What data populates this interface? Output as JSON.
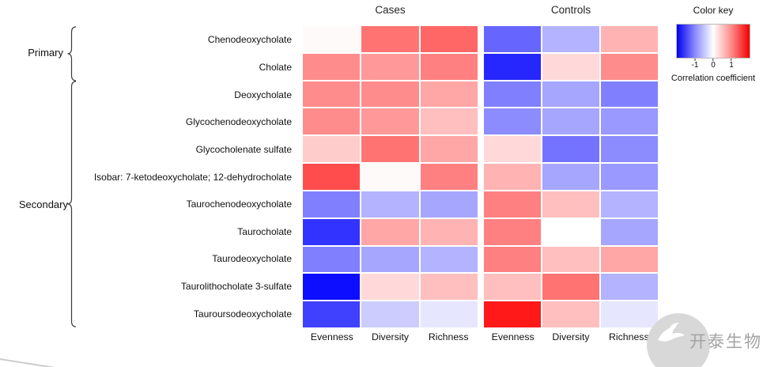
{
  "chart_data": {
    "type": "heatmap",
    "rows": [
      "Chenodeoxycholate",
      "Cholate",
      "Deoxycholate",
      "Glycochenodeoxycholate",
      "Glycocholenate sulfate",
      "Isobar: 7-ketodeoxycholate; 12-dehydrocholate",
      "Taurochenodeoxycholate",
      "Taurocholate",
      "Taurodeoxycholate",
      "Taurolithocholate 3-sulfate",
      "Tauroursodeoxycholate"
    ],
    "row_groups": [
      {
        "label": "Primary",
        "rows": [
          "Chenodeoxycholate",
          "Cholate"
        ]
      },
      {
        "label": "Secondary",
        "rows": [
          "Deoxycholate",
          "Glycochenodeoxycholate",
          "Glycocholenate sulfate",
          "Isobar: 7-ketodeoxycholate; 12-dehydrocholate",
          "Taurochenodeoxycholate",
          "Taurocholate",
          "Taurodeoxycholate",
          "Taurolithocholate 3-sulfate",
          "Tauroursodeoxycholate"
        ]
      }
    ],
    "columns": [
      "Evenness",
      "Diversity",
      "Richness"
    ],
    "value_range": [
      -1,
      1
    ],
    "colormap": {
      "negative": "#0000ff",
      "zero": "#ffffff",
      "positive": "#ff0000"
    },
    "panels": [
      {
        "title": "Cases",
        "values": [
          [
            0.02,
            0.55,
            0.6
          ],
          [
            0.45,
            0.4,
            0.5
          ],
          [
            0.45,
            0.45,
            0.35
          ],
          [
            0.45,
            0.4,
            0.25
          ],
          [
            0.2,
            0.55,
            0.35
          ],
          [
            0.7,
            0.02,
            0.5
          ],
          [
            -0.5,
            -0.3,
            -0.35
          ],
          [
            -0.8,
            0.35,
            0.3
          ],
          [
            -0.5,
            -0.35,
            -0.3
          ],
          [
            -0.95,
            0.15,
            0.25
          ],
          [
            -0.75,
            -0.2,
            -0.1
          ]
        ]
      },
      {
        "title": "Controls",
        "values": [
          [
            -0.6,
            -0.3,
            0.3
          ],
          [
            -0.85,
            0.15,
            0.45
          ],
          [
            -0.5,
            -0.35,
            -0.5
          ],
          [
            -0.45,
            -0.35,
            -0.4
          ],
          [
            0.15,
            -0.55,
            -0.45
          ],
          [
            0.3,
            -0.35,
            -0.4
          ],
          [
            0.5,
            0.25,
            -0.3
          ],
          [
            0.5,
            0.0,
            -0.35
          ],
          [
            0.5,
            0.25,
            0.35
          ],
          [
            0.25,
            0.55,
            -0.3
          ],
          [
            0.9,
            0.25,
            -0.1
          ]
        ]
      }
    ]
  },
  "color_key": {
    "title": "Color key",
    "ticks": [
      {
        "label": "-1",
        "pos": 25
      },
      {
        "label": "0",
        "pos": 50
      },
      {
        "label": "1",
        "pos": 75
      }
    ],
    "caption": "Correlation coefficient"
  },
  "watermark": {
    "text": "开泰生物"
  }
}
